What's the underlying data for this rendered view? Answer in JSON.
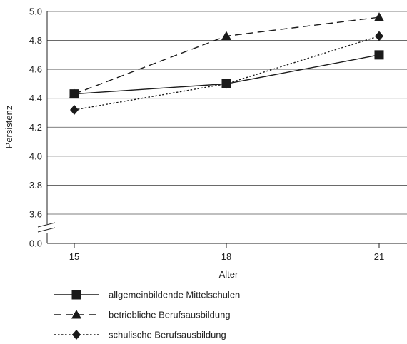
{
  "chart_data": {
    "type": "line",
    "xlabel": "Alter",
    "ylabel": "Persistenz",
    "x": [
      15,
      18,
      21
    ],
    "x_tick_labels": [
      "15",
      "18",
      "21"
    ],
    "y_tick_labels": [
      "0.0",
      "3.6",
      "3.8",
      "4.0",
      "4.2",
      "4.4",
      "4.6",
      "4.8",
      "5.0"
    ],
    "ylim": [
      3.6,
      5.0
    ],
    "y_axis_break": true,
    "grid": "horizontal",
    "legend_position": "bottom-left",
    "series": [
      {
        "name": "allgemeinbildende Mittelschulen",
        "values": [
          4.43,
          4.5,
          4.7
        ],
        "line_style": "solid",
        "marker": "square"
      },
      {
        "name": "betriebliche Berufsausbildung",
        "values": [
          4.43,
          4.83,
          4.96
        ],
        "line_style": "dashed",
        "marker": "triangle"
      },
      {
        "name": "schulische Berufsausbildung",
        "values": [
          4.32,
          4.5,
          4.83
        ],
        "line_style": "dotted",
        "marker": "diamond"
      }
    ]
  }
}
